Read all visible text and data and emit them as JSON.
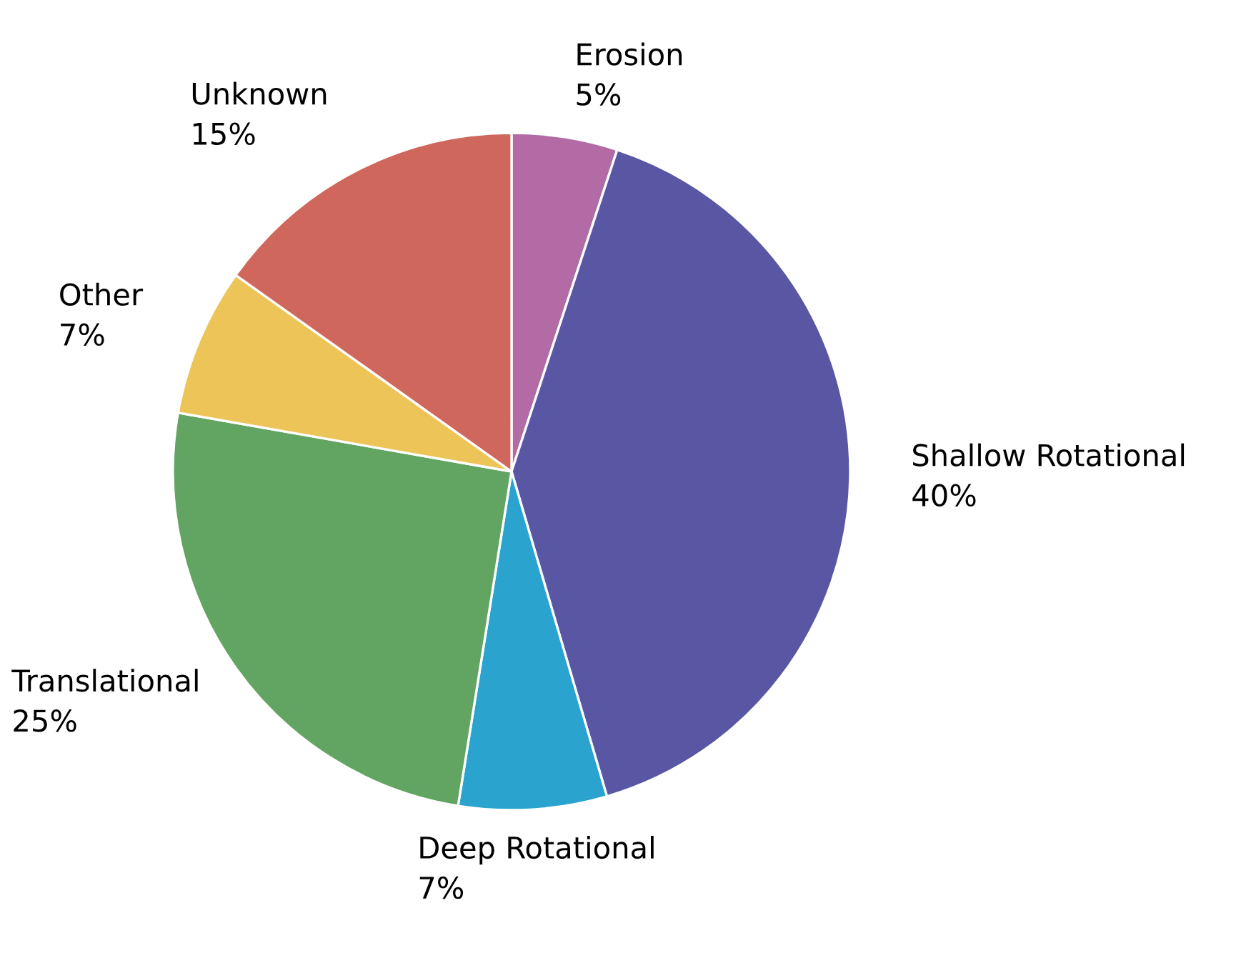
{
  "chart_data": {
    "type": "pie",
    "categories": [
      "Erosion",
      "Shallow Rotational",
      "Deep Rotational",
      "Translational",
      "Other",
      "Unknown"
    ],
    "values": [
      5,
      40,
      7,
      25,
      7,
      15
    ],
    "colors": [
      "#b36ba5",
      "#5956a3",
      "#2aa3cf",
      "#62a462",
      "#ecc457",
      "#cf675c"
    ],
    "value_labels": [
      "5%",
      "40%",
      "7%",
      "25%",
      "7%",
      "15%"
    ]
  }
}
